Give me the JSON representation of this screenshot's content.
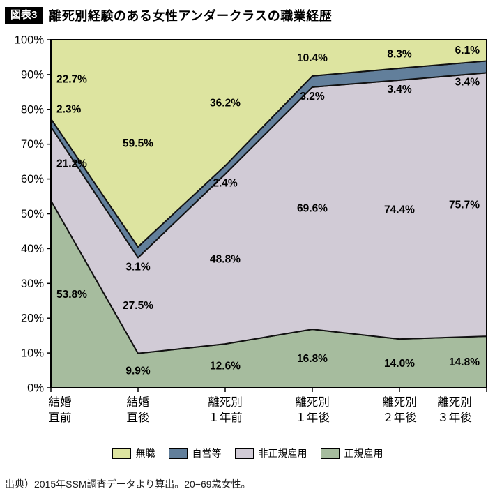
{
  "header": {
    "badge": "図表3",
    "title": "離死別経験のある女性アンダークラスの職業経歴"
  },
  "chart_data": {
    "type": "area",
    "stacked": true,
    "percent": true,
    "title": "離死別経験のある女性アンダークラスの職業経歴",
    "categories": [
      [
        "結婚",
        "直前"
      ],
      [
        "結婚",
        "直後"
      ],
      [
        "離死別",
        "１年前"
      ],
      [
        "離死別",
        "１年後"
      ],
      [
        "離死別",
        "２年後"
      ],
      [
        "離死別",
        "３年後"
      ]
    ],
    "series": [
      {
        "name": "正規雇用",
        "color": "#a6bc9e",
        "values": [
          53.8,
          9.9,
          12.6,
          16.8,
          14.0,
          14.8
        ]
      },
      {
        "name": "非正規雇用",
        "color": "#d1cbd6",
        "values": [
          21.2,
          27.5,
          48.8,
          69.6,
          74.4,
          75.7
        ]
      },
      {
        "name": "自営等",
        "color": "#627f9b",
        "values": [
          2.3,
          3.1,
          2.4,
          3.2,
          3.4,
          3.4
        ]
      },
      {
        "name": "無職",
        "color": "#dde4a0",
        "values": [
          22.7,
          59.5,
          36.2,
          10.4,
          8.3,
          6.1
        ]
      }
    ],
    "ylim": [
      0,
      100
    ],
    "y_ticks": [
      "0%",
      "10%",
      "20%",
      "30%",
      "40%",
      "50%",
      "60%",
      "70%",
      "80%",
      "90%",
      "100%"
    ],
    "legend_order": [
      "無職",
      "自営等",
      "非正規雇用",
      "正規雇用"
    ],
    "legend_position": "bottom",
    "grid": false
  },
  "footer": {
    "source": "出典）2015年SSM調査データより算出。20−69歳女性。"
  }
}
